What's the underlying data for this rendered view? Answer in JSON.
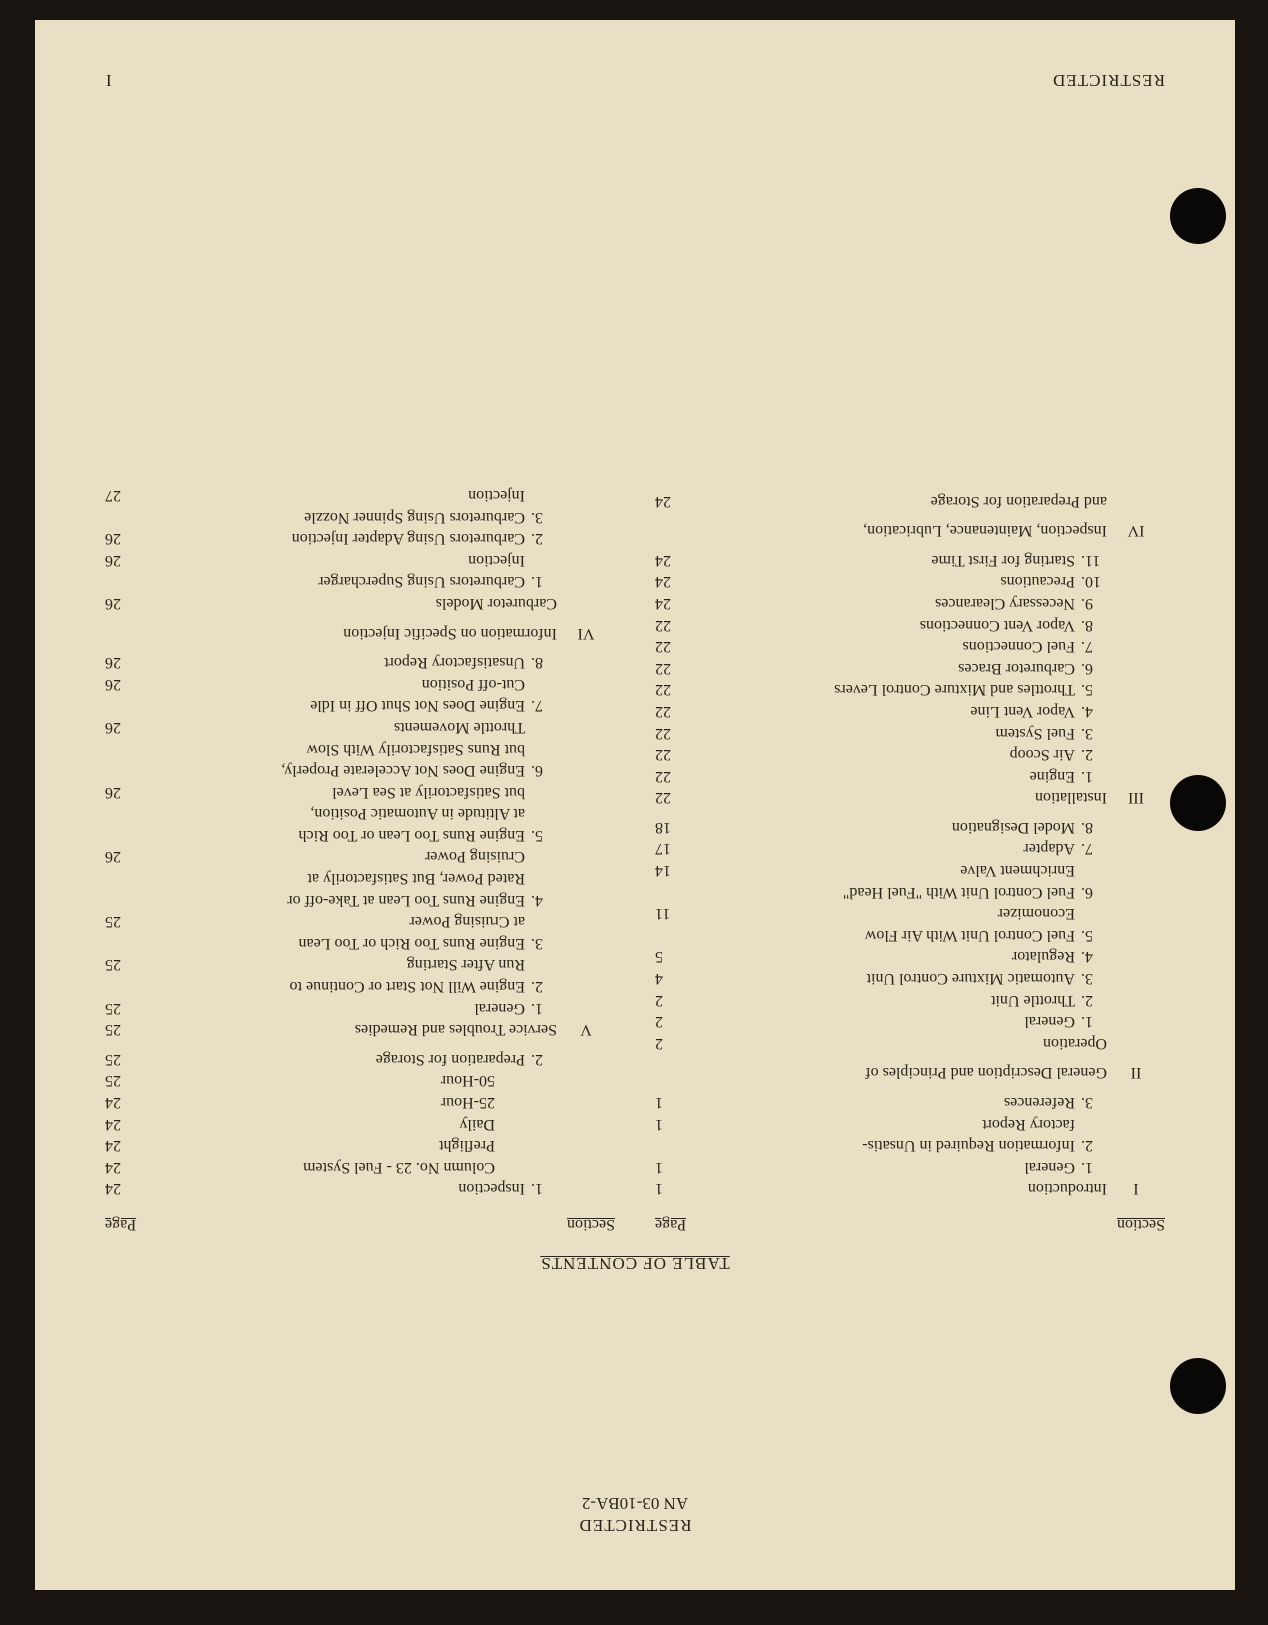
{
  "header": {
    "restricted": "RESTRICTED",
    "doc_id": "AN 03-10BA-2",
    "toc_title": "TABLE OF CONTENTS",
    "col_section": "Section",
    "col_page": "Page"
  },
  "footer": {
    "restricted": "RESTRICTED",
    "pagenum": "I"
  },
  "left": [
    {
      "t": "sec",
      "num": "I",
      "label": "Introduction",
      "page": "1"
    },
    {
      "t": "item",
      "num": "1.",
      "label": "General",
      "page": "1"
    },
    {
      "t": "item",
      "num": "2.",
      "label": "Information Required in Unsatis-",
      "page": ""
    },
    {
      "t": "cont",
      "label": "factory Report",
      "page": "1"
    },
    {
      "t": "item",
      "num": "3.",
      "label": "References",
      "page": "1"
    },
    {
      "t": "sec",
      "num": "II",
      "label": "General Description and Principles of",
      "page": ""
    },
    {
      "t": "seccont",
      "label": "Operation",
      "page": "2"
    },
    {
      "t": "item",
      "num": "1.",
      "label": "General",
      "page": "2"
    },
    {
      "t": "item",
      "num": "2.",
      "label": "Throttle Unit",
      "page": "2"
    },
    {
      "t": "item",
      "num": "3.",
      "label": "Automatic Mixture Control Unit",
      "page": "4"
    },
    {
      "t": "item",
      "num": "4.",
      "label": "Regulator",
      "page": "5"
    },
    {
      "t": "item",
      "num": "5.",
      "label": "Fuel Control Unit With Air Flow",
      "page": ""
    },
    {
      "t": "cont",
      "label": "Economizer",
      "page": "11"
    },
    {
      "t": "item",
      "num": "6.",
      "label": "Fuel Control Unit With \"Fuel Head\"",
      "page": ""
    },
    {
      "t": "cont",
      "label": "Enrichment Valve",
      "page": "14"
    },
    {
      "t": "item",
      "num": "7.",
      "label": "Adapter",
      "page": "17"
    },
    {
      "t": "item",
      "num": "8.",
      "label": "Model Designation",
      "page": "18"
    },
    {
      "t": "sec",
      "num": "III",
      "label": "Installation",
      "page": "22"
    },
    {
      "t": "item",
      "num": "1.",
      "label": "Engine",
      "page": "22"
    },
    {
      "t": "item",
      "num": "2.",
      "label": "Air Scoop",
      "page": "22"
    },
    {
      "t": "item",
      "num": "3.",
      "label": "Fuel System",
      "page": "22"
    },
    {
      "t": "item",
      "num": "4.",
      "label": "Vapor Vent Line",
      "page": "22"
    },
    {
      "t": "item",
      "num": "5.",
      "label": "Throttles and Mixture Control Levers",
      "page": "22"
    },
    {
      "t": "item",
      "num": "6.",
      "label": "Carburetor Braces",
      "page": "22"
    },
    {
      "t": "item",
      "num": "7.",
      "label": "Fuel Connections",
      "page": "22"
    },
    {
      "t": "item",
      "num": "8.",
      "label": "Vapor Vent Connections",
      "page": "22"
    },
    {
      "t": "item",
      "num": "9.",
      "label": "Necessary Clearances",
      "page": "24"
    },
    {
      "t": "item",
      "num": "10.",
      "label": "Precautions",
      "page": "24"
    },
    {
      "t": "item",
      "num": "11.",
      "label": "Starting for First Time",
      "page": "24"
    },
    {
      "t": "sec",
      "num": "IV",
      "label": "Inspection, Maintenance, Lubrication,",
      "page": ""
    },
    {
      "t": "seccont",
      "label": "and Preparation for Storage",
      "page": "24"
    }
  ],
  "right": [
    {
      "t": "item",
      "num": "1.",
      "label": "Inspection",
      "page": "24"
    },
    {
      "t": "sub",
      "label": "Column No. 23 - Fuel System",
      "page": "24"
    },
    {
      "t": "sub",
      "label": "Preflight",
      "page": "24"
    },
    {
      "t": "sub",
      "label": "Daily",
      "page": "24"
    },
    {
      "t": "sub",
      "label": "25-Hour",
      "page": "24"
    },
    {
      "t": "sub",
      "label": "50-Hour",
      "page": "25"
    },
    {
      "t": "item",
      "num": "2.",
      "label": "Preparation for Storage",
      "page": "25"
    },
    {
      "t": "sec",
      "num": "V",
      "label": "Service Troubles and Remedies",
      "page": "25"
    },
    {
      "t": "item",
      "num": "1.",
      "label": "General",
      "page": "25"
    },
    {
      "t": "item",
      "num": "2.",
      "label": "Engine Will Not Start or Continue to",
      "page": ""
    },
    {
      "t": "cont",
      "label": "Run After Starting",
      "page": "25"
    },
    {
      "t": "item",
      "num": "3.",
      "label": "Engine Runs Too Rich or Too Lean",
      "page": ""
    },
    {
      "t": "cont",
      "label": "at Cruising Power",
      "page": "25"
    },
    {
      "t": "item",
      "num": "4.",
      "label": "Engine Runs Too Lean at Take-off or",
      "page": ""
    },
    {
      "t": "cont",
      "label": "Rated Power, But Satisfactorily at",
      "page": ""
    },
    {
      "t": "cont",
      "label": "Cruising Power",
      "page": "26"
    },
    {
      "t": "item",
      "num": "5.",
      "label": "Engine Runs Too Lean or Too Rich",
      "page": ""
    },
    {
      "t": "cont",
      "label": "at Altitude in Automatic Position,",
      "page": ""
    },
    {
      "t": "cont",
      "label": "but Satisfactorily at Sea Level",
      "page": "26"
    },
    {
      "t": "item",
      "num": "6.",
      "label": "Engine Does Not Accelerate Properly,",
      "page": ""
    },
    {
      "t": "cont",
      "label": "but Runs Satisfactorily With Slow",
      "page": ""
    },
    {
      "t": "cont",
      "label": "Throttle Movements",
      "page": "26"
    },
    {
      "t": "item",
      "num": "7.",
      "label": "Engine Does Not Shut Off in Idle",
      "page": ""
    },
    {
      "t": "cont",
      "label": "Cut-off Position",
      "page": "26"
    },
    {
      "t": "item",
      "num": "8.",
      "label": "Unsatisfactory Report",
      "page": "26"
    },
    {
      "t": "sec",
      "num": "VI",
      "label": "Information on Specific Injection",
      "page": ""
    },
    {
      "t": "seccont",
      "label": "Carburetor Models",
      "page": "26"
    },
    {
      "t": "item",
      "num": "1.",
      "label": "Carburetors Using Supercharger",
      "page": ""
    },
    {
      "t": "cont",
      "label": "Injection",
      "page": "26"
    },
    {
      "t": "item",
      "num": "2.",
      "label": "Carburetors Using Adapter Injection",
      "page": "26"
    },
    {
      "t": "item",
      "num": "3.",
      "label": "Carburetors Using Spinner Nozzle",
      "page": ""
    },
    {
      "t": "cont",
      "label": "Injection",
      "page": "27"
    }
  ]
}
